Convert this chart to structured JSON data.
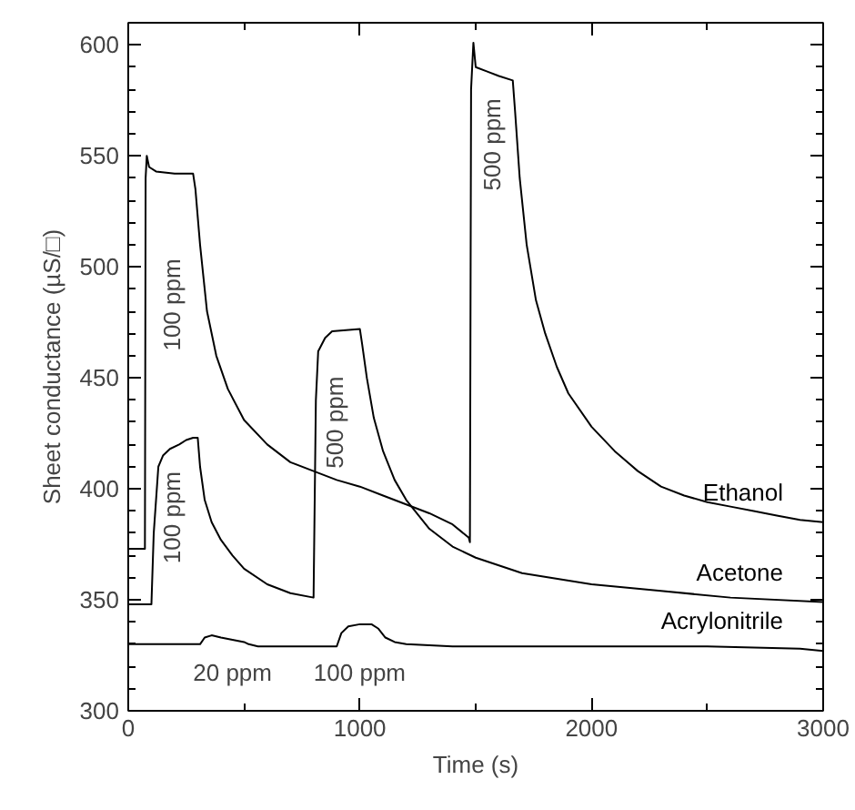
{
  "chart_data": {
    "type": "line",
    "xlabel": "Time (s)",
    "ylabel": "Sheet conductance (µS/□)",
    "xlim": [
      0,
      3000
    ],
    "ylim": [
      300,
      610
    ],
    "xticks": [
      0,
      1000,
      2000,
      3000
    ],
    "yticks": [
      300,
      350,
      400,
      450,
      500,
      550,
      600
    ],
    "grid": false,
    "legend": "right",
    "marker": "none",
    "line_style": "solid",
    "series": [
      {
        "name": "Ethanol",
        "color": "#000000",
        "x": [
          0,
          72,
          75,
          80,
          90,
          120,
          200,
          280,
          290,
          310,
          340,
          380,
          430,
          500,
          600,
          700,
          800,
          900,
          1000,
          1100,
          1200,
          1300,
          1400,
          1470,
          1475,
          1480,
          1490,
          1500,
          1550,
          1600,
          1660,
          1670,
          1690,
          1720,
          1760,
          1800,
          1850,
          1900,
          2000,
          2100,
          2200,
          2300,
          2400,
          2500,
          2600,
          2700,
          2800,
          2900,
          3000
        ],
        "values": [
          373,
          373,
          540,
          550,
          545,
          543,
          542,
          542,
          535,
          510,
          480,
          460,
          445,
          431,
          420,
          412,
          408,
          404,
          401,
          397,
          393,
          389,
          384,
          378,
          376,
          580,
          601,
          590,
          588,
          586,
          584,
          570,
          540,
          510,
          485,
          470,
          455,
          443,
          428,
          417,
          408,
          401,
          397,
          394,
          392,
          390,
          388,
          386,
          385
        ]
      },
      {
        "name": "Acetone",
        "color": "#000000",
        "x": [
          0,
          100,
          110,
          130,
          150,
          180,
          220,
          250,
          280,
          300,
          310,
          330,
          360,
          400,
          450,
          500,
          600,
          700,
          800,
          810,
          820,
          850,
          880,
          1000,
          1010,
          1030,
          1060,
          1100,
          1150,
          1200,
          1300,
          1400,
          1500,
          1700,
          2000,
          2300,
          2600,
          3000
        ],
        "values": [
          348,
          348,
          380,
          410,
          415,
          418,
          420,
          422,
          423,
          423,
          410,
          395,
          385,
          377,
          370,
          364,
          357,
          353,
          351,
          440,
          462,
          468,
          471,
          472,
          465,
          450,
          432,
          417,
          404,
          395,
          382,
          374,
          369,
          362,
          357,
          354,
          351,
          349
        ]
      },
      {
        "name": "Acrylonitrile",
        "color": "#000000",
        "x": [
          0,
          310,
          330,
          360,
          400,
          450,
          500,
          520,
          560,
          600,
          700,
          800,
          900,
          920,
          950,
          1000,
          1050,
          1080,
          1110,
          1150,
          1200,
          1400,
          2000,
          2500,
          2900,
          3000
        ],
        "values": [
          330,
          330,
          333,
          334,
          333,
          332,
          331,
          330,
          329,
          329,
          329,
          329,
          329,
          335,
          338,
          339,
          339,
          337,
          333,
          331,
          330,
          329,
          329,
          329,
          328,
          327
        ]
      }
    ],
    "annotations": [
      "100 ppm",
      "100 ppm",
      "500 ppm",
      "500 ppm",
      "20 ppm",
      "100 ppm"
    ]
  }
}
